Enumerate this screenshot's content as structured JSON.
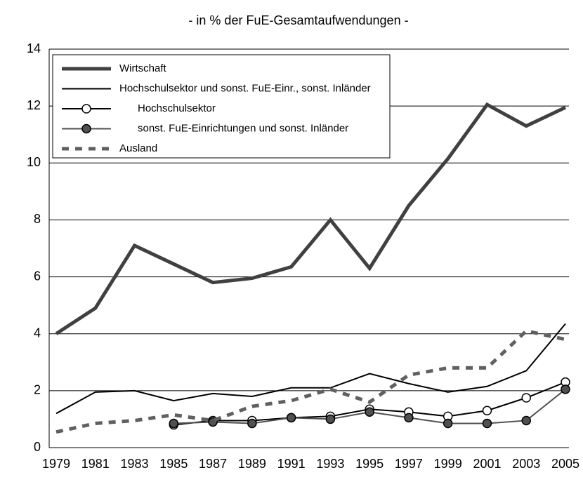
{
  "chart_data": {
    "type": "line",
    "title": "- in % der FuE-Gesamtaufwendungen -",
    "categories": [
      "1979",
      "1981",
      "1983",
      "1985",
      "1987",
      "1989",
      "1991",
      "1993",
      "1995",
      "1997",
      "1999",
      "2001",
      "2003",
      "2005"
    ],
    "series": [
      {
        "name": "Wirtschaft",
        "color": "#404040",
        "values": [
          4.0,
          4.9,
          7.1,
          6.45,
          5.8,
          5.95,
          6.35,
          8.0,
          6.3,
          8.5,
          10.15,
          12.05,
          11.3,
          11.95
        ]
      },
      {
        "name": "Hochschulsektor und sonst. FuE-Einr., sonst. Inländer",
        "color": "#000000",
        "values": [
          1.2,
          1.95,
          2.0,
          1.65,
          1.9,
          1.8,
          2.1,
          2.1,
          2.6,
          2.25,
          1.95,
          2.15,
          2.7,
          4.35
        ]
      },
      {
        "name": "Hochschulsektor",
        "color": "#000000",
        "values": [
          null,
          null,
          null,
          0.8,
          0.95,
          0.95,
          1.05,
          1.1,
          1.35,
          1.25,
          1.1,
          1.3,
          1.75,
          2.3
        ]
      },
      {
        "name": "sonst. FuE-Einrichtungen und sonst. Inländer",
        "color": "#505050",
        "values": [
          null,
          null,
          null,
          0.85,
          0.9,
          0.85,
          1.05,
          1.0,
          1.25,
          1.05,
          0.85,
          0.85,
          0.95,
          2.05
        ]
      },
      {
        "name": "Ausland",
        "color": "#606060",
        "values": [
          0.55,
          0.85,
          0.95,
          1.15,
          0.95,
          1.45,
          1.65,
          2.05,
          1.6,
          2.55,
          2.8,
          2.8,
          4.1,
          3.8
        ]
      }
    ],
    "ylim": [
      0,
      14
    ],
    "yticks": [
      0,
      2,
      4,
      6,
      8,
      10,
      12,
      14
    ],
    "grid": true,
    "legend": "top-left"
  }
}
